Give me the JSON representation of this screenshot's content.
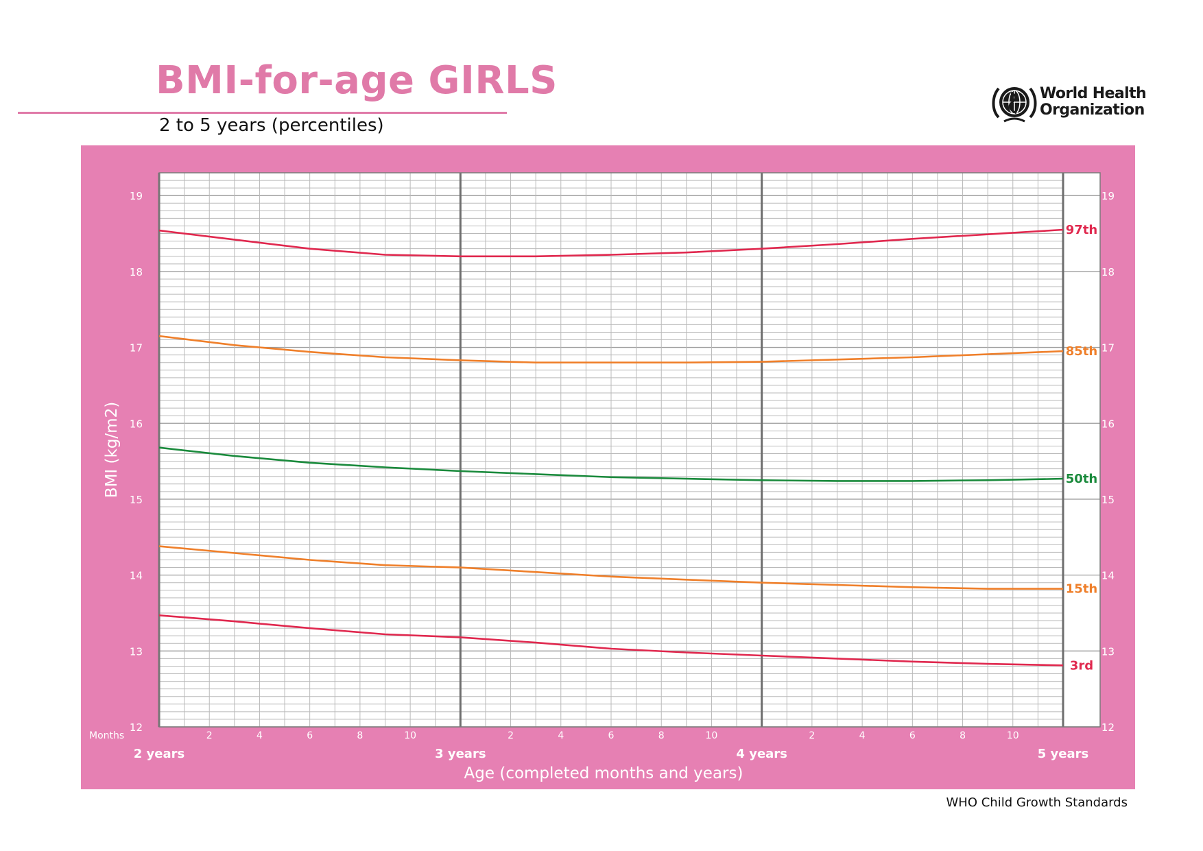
{
  "header": {
    "title": "BMI-for-age GIRLS",
    "subtitle": "2 to 5 years (percentiles)",
    "org_line1": "World Health",
    "org_line2": "Organization"
  },
  "footer": {
    "text": "WHO Child Growth Standards"
  },
  "colors": {
    "brand_pink": "#e07aa8",
    "panel_pink": "#e680b3",
    "red": "#e0284e",
    "orange": "#ef7f2a",
    "green": "#1a8a3c",
    "major_grid": "#6e6e6e",
    "minor_grid": "#b9b9b9"
  },
  "icons": {
    "logo": "who-emblem-icon"
  },
  "chart_data": {
    "type": "line",
    "title": "BMI-for-age GIRLS",
    "subtitle": "2 to 5 years (percentiles)",
    "xlabel": "Age (completed months and years)",
    "ylabel": "BMI (kg/m2)",
    "x_unit_label": "Months",
    "xlim": [
      24,
      60
    ],
    "ylim": [
      12,
      19.3
    ],
    "yticks": [
      12,
      13,
      14,
      15,
      16,
      17,
      18,
      19
    ],
    "year_ticks": [
      {
        "month": 24,
        "label": "2 years"
      },
      {
        "month": 36,
        "label": "3 years"
      },
      {
        "month": 48,
        "label": "4 years"
      },
      {
        "month": 60,
        "label": "5 years"
      }
    ],
    "month_ticks": [
      2,
      4,
      6,
      8,
      10
    ],
    "x": [
      24,
      27,
      30,
      33,
      36,
      39,
      42,
      45,
      48,
      51,
      54,
      57,
      60
    ],
    "series": [
      {
        "name": "97th",
        "color": "#e0284e",
        "values": [
          18.54,
          18.42,
          18.3,
          18.22,
          18.2,
          18.2,
          18.22,
          18.25,
          18.3,
          18.36,
          18.43,
          18.49,
          18.55
        ]
      },
      {
        "name": "85th",
        "color": "#ef7f2a",
        "values": [
          17.15,
          17.03,
          16.94,
          16.87,
          16.83,
          16.8,
          16.8,
          16.8,
          16.81,
          16.84,
          16.87,
          16.91,
          16.95
        ]
      },
      {
        "name": "50th",
        "color": "#1a8a3c",
        "values": [
          15.68,
          15.57,
          15.48,
          15.42,
          15.37,
          15.33,
          15.29,
          15.27,
          15.25,
          15.24,
          15.24,
          15.25,
          15.27
        ]
      },
      {
        "name": "15th",
        "color": "#ef7f2a",
        "values": [
          14.38,
          14.29,
          14.2,
          14.13,
          14.1,
          14.04,
          13.98,
          13.94,
          13.9,
          13.87,
          13.84,
          13.82,
          13.82
        ]
      },
      {
        "name": "3rd",
        "color": "#e0284e",
        "values": [
          13.47,
          13.39,
          13.3,
          13.22,
          13.18,
          13.11,
          13.03,
          12.98,
          12.94,
          12.9,
          12.86,
          12.83,
          12.81
        ]
      }
    ]
  }
}
